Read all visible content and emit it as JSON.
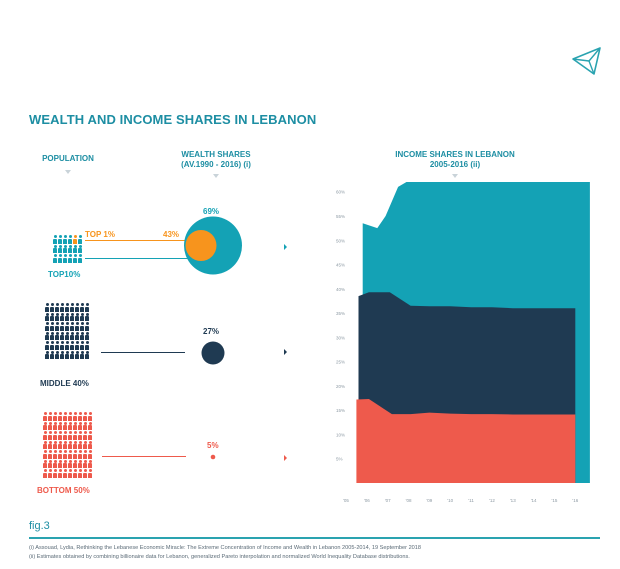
{
  "title": "WEALTH AND INCOME SHARES IN LEBANON",
  "headers": {
    "population": "POPULATION",
    "wealth_line1": "WEALTH SHARES",
    "wealth_line2": "(AV.1990 - 2016) (i)",
    "income_line1": "INCOME SHARES IN LEBANON",
    "income_line2": "2005-2016 (ii)"
  },
  "groups": {
    "top10": {
      "label": "TOP10%",
      "wealth": "69%",
      "color": "#14a2b5"
    },
    "top1": {
      "label": "TOP 1%",
      "wealth": "43%",
      "color": "#f7941d"
    },
    "middle40": {
      "label": "MIDDLE 40%",
      "wealth": "27%",
      "color": "#1f3a52"
    },
    "bottom50": {
      "label": "BOTTOM 50%",
      "wealth": "5%",
      "color": "#ee5a4c"
    }
  },
  "figure_label": "fig.3",
  "footnotes": [
    "(i) Assouad, Lydia, Rethinking the Lebanese Economic Miracle: The Extreme Concentration of Income and Wealth in Lebanon 2005-2014, 19 September 2018",
    "(ii) Estimates obtained by combining billionaire data for Lebanon, generalized Pareto interpolation and normalized World Inequality Database distributions."
  ],
  "chart_data": [
    {
      "type": "pie",
      "title": "WEALTH SHARES (AV.1990 - 2016) (i)",
      "categories": [
        "TOP10%",
        "TOP 1%",
        "MIDDLE 40%",
        "BOTTOM 50%"
      ],
      "values": [
        69,
        43,
        27,
        5
      ],
      "unit": "%"
    },
    {
      "type": "area",
      "title": "INCOME SHARES IN LEBANON 2005-2016 (ii)",
      "x": [
        "'05",
        "'06",
        "'07",
        "'08",
        "'09",
        "'10",
        "'11",
        "'12",
        "'13",
        "'14",
        "'15",
        "'16"
      ],
      "x_num": [
        2005,
        2006,
        2007,
        2008,
        2009,
        2010,
        2011,
        2012,
        2013,
        2014,
        2015,
        2016
      ],
      "y_ticks": [
        "5%",
        "10%",
        "15%",
        "20%",
        "25%",
        "30%",
        "35%",
        "40%",
        "45%",
        "50%",
        "55%",
        "60%"
      ],
      "ylim": [
        0,
        62
      ],
      "series": [
        {
          "name": "TOP10%",
          "color": "#14a2b5",
          "x": [
            2005.8,
            2006.5,
            2006.9,
            2007.5,
            2008.3,
            2009,
            2010,
            2011,
            2012,
            2013,
            2014,
            2015,
            2016,
            2016.7
          ],
          "values": [
            53.5,
            52.5,
            55,
            61,
            63,
            62.5,
            62,
            62.5,
            62.6,
            63,
            63,
            62.4,
            62.5,
            62.5
          ]
        },
        {
          "name": "MIDDLE 40%",
          "color": "#1f3a52",
          "x": [
            2005.6,
            2006.1,
            2007.1,
            2008.1,
            2009,
            2010,
            2011,
            2012,
            2013,
            2014,
            2015,
            2016
          ],
          "values": [
            38.5,
            39.3,
            39.3,
            36.5,
            36.4,
            36.4,
            36.2,
            36.2,
            36,
            36,
            36,
            36
          ]
        },
        {
          "name": "BOTTOM 50%",
          "color": "#ee5a4c",
          "x": [
            2005.5,
            2006.1,
            2007.2,
            2008.1,
            2009,
            2010,
            2011,
            2012,
            2013,
            2014,
            2015,
            2016
          ],
          "values": [
            17.2,
            17.3,
            14.2,
            14.2,
            14.5,
            14.3,
            14.2,
            14.2,
            14.1,
            14.1,
            14.1,
            14.1
          ]
        }
      ],
      "grid": false,
      "legend": "none"
    }
  ]
}
